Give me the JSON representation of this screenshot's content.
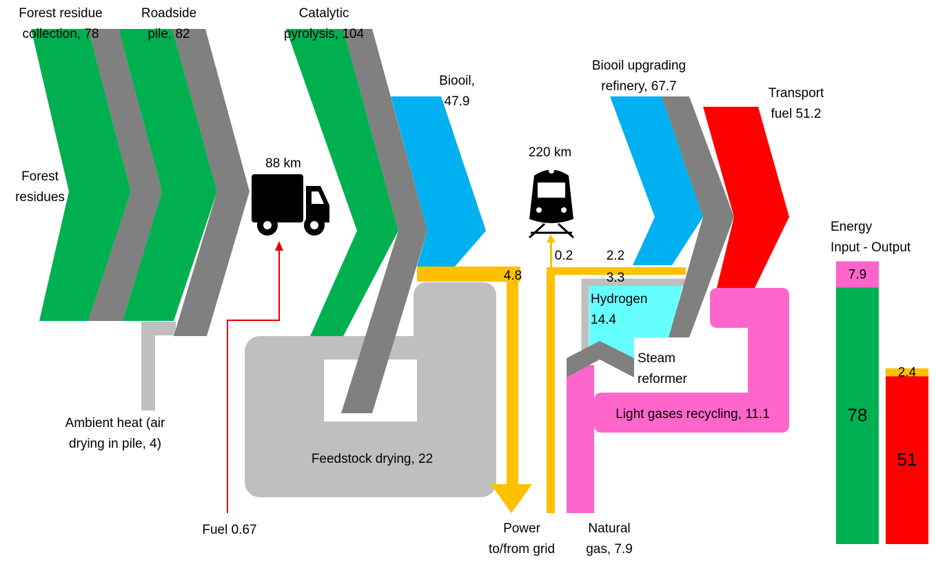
{
  "nodes": [
    {
      "label": [
        "Forest residue",
        "collection, 78"
      ]
    },
    {
      "label": [
        "Roadside",
        "pile, 82"
      ]
    },
    {
      "label": [
        "Forest",
        "residues"
      ]
    },
    {
      "label": [
        "88 km"
      ]
    },
    {
      "label": [
        "Catalytic",
        "pyrolysis, 104"
      ]
    },
    {
      "label": [
        "Biooil,",
        "47.9"
      ]
    },
    {
      "label": [
        "220 km"
      ]
    },
    {
      "label": [
        "Biooil upgrading",
        "refinery, 67.7"
      ]
    },
    {
      "label": [
        "Transport",
        "fuel  51.2"
      ]
    },
    {
      "label": [
        "4.8"
      ]
    },
    {
      "label": [
        "0.2"
      ]
    },
    {
      "label": [
        "2.2"
      ]
    },
    {
      "label": [
        "3.3"
      ]
    },
    {
      "label": [
        "Hydrogen",
        "14.4"
      ]
    },
    {
      "label": [
        "Steam",
        "reformer"
      ]
    },
    {
      "label": [
        "Light gases recycling, 11.1"
      ]
    },
    {
      "label": [
        "Ambient heat (air",
        "drying in pile, 4)"
      ]
    },
    {
      "label": [
        "Feedstock drying, 22"
      ]
    },
    {
      "label": [
        "Fuel 0.67"
      ]
    },
    {
      "label": [
        "Power",
        "to/from grid"
      ]
    },
    {
      "label": [
        "Natural",
        "gas, 7.9"
      ]
    }
  ],
  "energy_chart": {
    "title": [
      "Energy",
      "Input - Output"
    ],
    "input_values": [
      78,
      7.9
    ],
    "input_colors": [
      "#00b050",
      "#ff66cc"
    ],
    "output_values": [
      51,
      2.4
    ],
    "output_colors": [
      "#ff0000",
      "#ffc000"
    ]
  }
}
